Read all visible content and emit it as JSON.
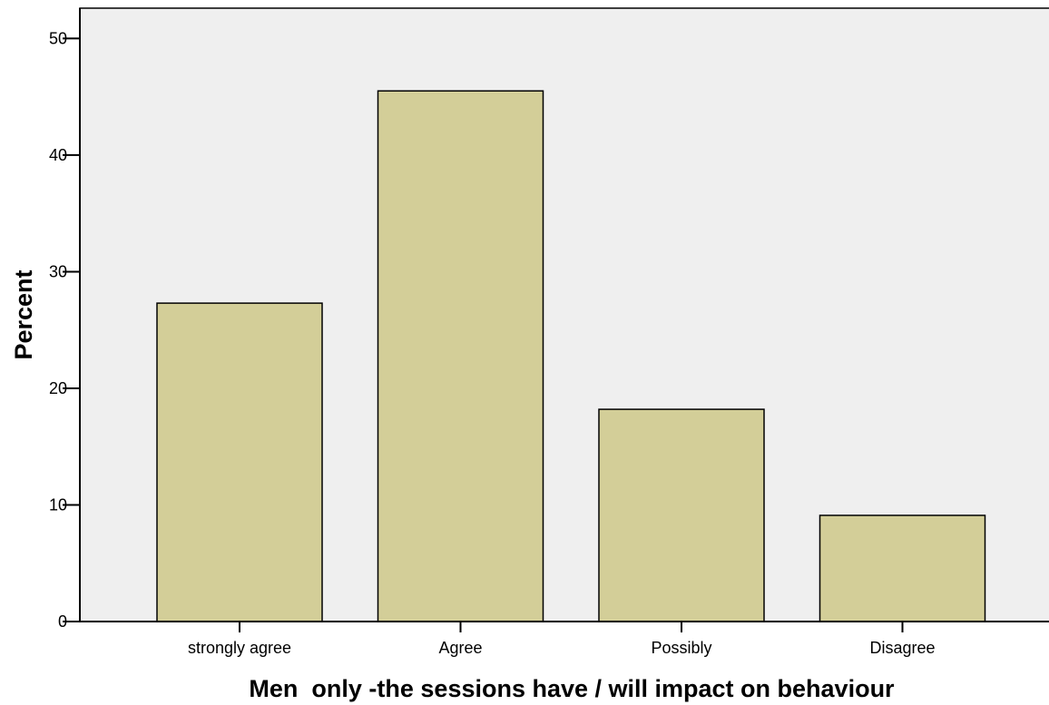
{
  "chart_data": {
    "type": "bar",
    "categories": [
      "strongly agree",
      "Agree",
      "Possibly",
      "Disagree"
    ],
    "values": [
      27.3,
      45.5,
      18.2,
      9.1
    ],
    "xlabel": "Men  only -the sessions have / will impact on behaviour",
    "ylabel": "Percent",
    "ylim": [
      0,
      52.6
    ],
    "yticks": [
      0,
      10,
      20,
      30,
      40,
      50
    ],
    "grid": false,
    "legend": "none",
    "colors": {
      "plot_background": "#efefef",
      "bar_fill": "#d3ce98",
      "bar_stroke": "#000000",
      "axis": "#000000"
    }
  }
}
